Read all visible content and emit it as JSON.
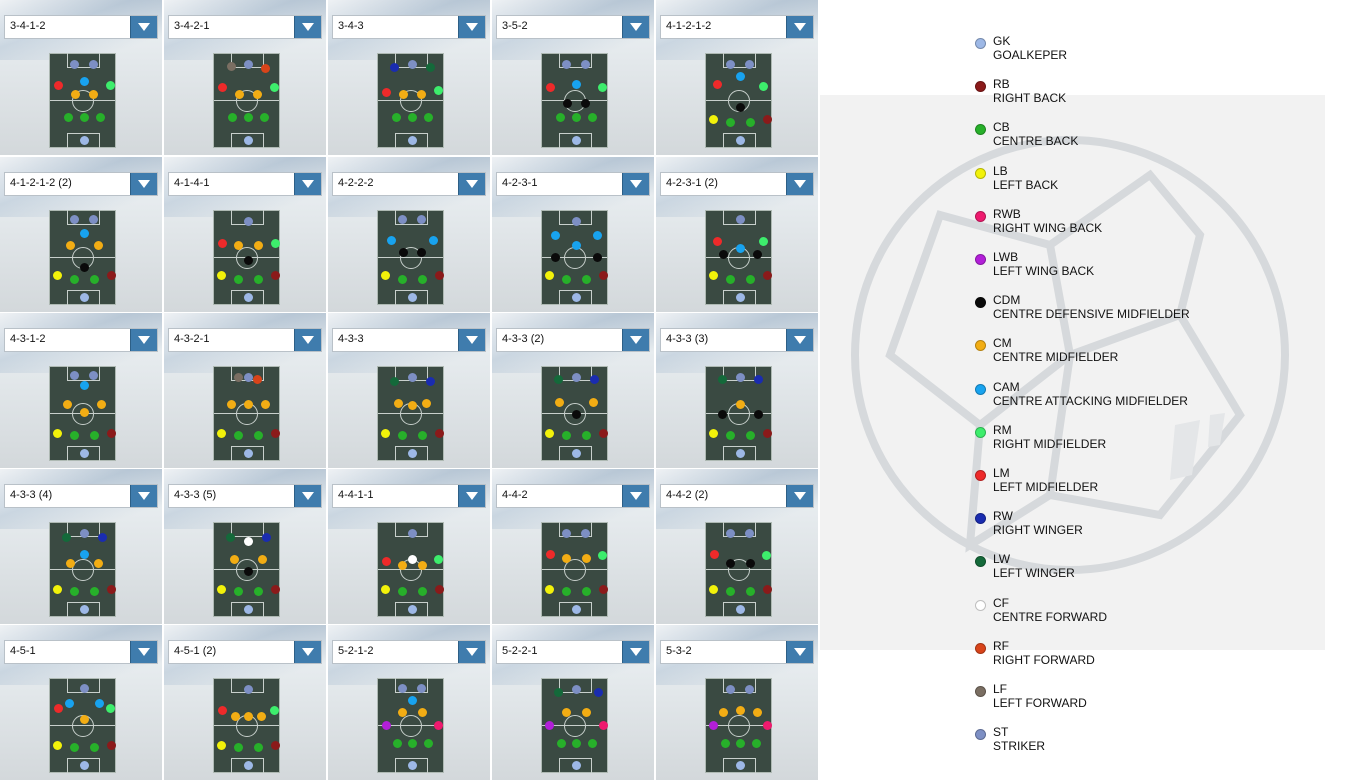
{
  "colors": {
    "GK": "#9db8e6",
    "RB": "#8b1a1a",
    "CB": "#27b02a",
    "LB": "#f2f20a",
    "RWB": "#ee1a6e",
    "LWB": "#b21fd8",
    "CDM": "#0a0a0a",
    "CM": "#f2ad14",
    "CAM": "#18a3ef",
    "RM": "#3ded6c",
    "LM": "#ee2a2a",
    "RW": "#1a2cb0",
    "LW": "#14693a",
    "CF": "#ffffff",
    "RF": "#d8441a",
    "LF": "#7a6e62",
    "ST": "#7d8fc4"
  },
  "formations": [
    {
      "name": "3-4-1-2",
      "players": [
        "ST",
        "ST",
        "CAM",
        "LM",
        "CM",
        "CM",
        "RM",
        "CB",
        "CB",
        "CB",
        "GK"
      ]
    },
    {
      "name": "3-4-2-1",
      "players": [
        "LF",
        "ST",
        "RF",
        "LM",
        "CM",
        "CM",
        "RM",
        "CB",
        "CB",
        "CB",
        "GK"
      ]
    },
    {
      "name": "3-4-3",
      "players": [
        "RW",
        "ST",
        "LW",
        "LM",
        "CM",
        "CM",
        "RM",
        "CB",
        "CB",
        "CB",
        "GK"
      ]
    },
    {
      "name": "3-5-2",
      "players": [
        "ST",
        "ST",
        "CAM",
        "LM",
        "CDM",
        "CDM",
        "RM",
        "CB",
        "CB",
        "CB",
        "GK"
      ]
    },
    {
      "name": "4-1-2-1-2",
      "players": [
        "ST",
        "ST",
        "CAM",
        "LM",
        "RM",
        "CDM",
        "LB",
        "CB",
        "CB",
        "RB",
        "GK"
      ]
    },
    {
      "name": "4-1-2-1-2 (2)",
      "players": [
        "ST",
        "ST",
        "CAM",
        "CM",
        "CM",
        "CDM",
        "LB",
        "CB",
        "CB",
        "RB",
        "GK"
      ]
    },
    {
      "name": "4-1-4-1",
      "players": [
        "ST",
        "LM",
        "CM",
        "CM",
        "RM",
        "CDM",
        "LB",
        "CB",
        "CB",
        "RB",
        "GK"
      ]
    },
    {
      "name": "4-2-2-2",
      "players": [
        "ST",
        "ST",
        "CAM",
        "CAM",
        "CDM",
        "CDM",
        "LB",
        "CB",
        "CB",
        "RB",
        "GK"
      ]
    },
    {
      "name": "4-2-3-1",
      "players": [
        "ST",
        "CAM",
        "CAM",
        "CAM",
        "CDM",
        "CDM",
        "LB",
        "CB",
        "CB",
        "RB",
        "GK"
      ]
    },
    {
      "name": "4-2-3-1 (2)",
      "players": [
        "ST",
        "LM",
        "CAM",
        "RM",
        "CDM",
        "CDM",
        "LB",
        "CB",
        "CB",
        "RB",
        "GK"
      ]
    },
    {
      "name": "4-3-1-2",
      "players": [
        "ST",
        "ST",
        "CAM",
        "CM",
        "CM",
        "CM",
        "LB",
        "CB",
        "CB",
        "RB",
        "GK"
      ]
    },
    {
      "name": "4-3-2-1",
      "players": [
        "LF",
        "ST",
        "RF",
        "CM",
        "CM",
        "CM",
        "LB",
        "CB",
        "CB",
        "RB",
        "GK"
      ]
    },
    {
      "name": "4-3-3",
      "players": [
        "LW",
        "ST",
        "RW",
        "CM",
        "CM",
        "CM",
        "LB",
        "CB",
        "CB",
        "RB",
        "GK"
      ]
    },
    {
      "name": "4-3-3 (2)",
      "players": [
        "LW",
        "ST",
        "RW",
        "CM",
        "CM",
        "CDM",
        "LB",
        "CB",
        "CB",
        "RB",
        "GK"
      ]
    },
    {
      "name": "4-3-3 (3)",
      "players": [
        "LW",
        "ST",
        "RW",
        "CM",
        "CDM",
        "CDM",
        "LB",
        "CB",
        "CB",
        "RB",
        "GK"
      ]
    },
    {
      "name": "4-3-3 (4)",
      "players": [
        "LW",
        "ST",
        "RW",
        "CAM",
        "CM",
        "CM",
        "LB",
        "CB",
        "CB",
        "RB",
        "GK"
      ]
    },
    {
      "name": "4-3-3 (5)",
      "players": [
        "LW",
        "CF",
        "RW",
        "CM",
        "CM",
        "CDM",
        "LB",
        "CB",
        "CB",
        "RB",
        "GK"
      ]
    },
    {
      "name": "4-4-1-1",
      "players": [
        "ST",
        "CF",
        "LM",
        "CM",
        "CM",
        "RM",
        "LB",
        "CB",
        "CB",
        "RB",
        "GK"
      ]
    },
    {
      "name": "4-4-2",
      "players": [
        "ST",
        "ST",
        "LM",
        "CM",
        "CM",
        "RM",
        "LB",
        "CB",
        "CB",
        "RB",
        "GK"
      ]
    },
    {
      "name": "4-4-2 (2)",
      "players": [
        "ST",
        "ST",
        "LM",
        "CDM",
        "CDM",
        "RM",
        "LB",
        "CB",
        "CB",
        "RB",
        "GK"
      ]
    },
    {
      "name": "4-5-1",
      "players": [
        "ST",
        "CAM",
        "CAM",
        "LM",
        "CM",
        "RM",
        "LB",
        "CB",
        "CB",
        "RB",
        "GK"
      ]
    },
    {
      "name": "4-5-1 (2)",
      "players": [
        "ST",
        "LM",
        "CM",
        "CM",
        "CM",
        "RM",
        "LB",
        "CB",
        "CB",
        "RB",
        "GK"
      ]
    },
    {
      "name": "5-2-1-2",
      "players": [
        "ST",
        "ST",
        "CAM",
        "CM",
        "CM",
        "LWB",
        "CB",
        "CB",
        "CB",
        "RWB",
        "GK"
      ]
    },
    {
      "name": "5-2-2-1",
      "players": [
        "LW",
        "ST",
        "RW",
        "CM",
        "CM",
        "LWB",
        "CB",
        "CB",
        "CB",
        "RWB",
        "GK"
      ]
    },
    {
      "name": "5-3-2",
      "players": [
        "ST",
        "ST",
        "CM",
        "CM",
        "CM",
        "LWB",
        "CB",
        "CB",
        "CB",
        "RWB",
        "GK"
      ]
    }
  ],
  "legend": [
    {
      "code": "GK",
      "full": "GOALKEPER"
    },
    {
      "code": "RB",
      "full": "RIGHT BACK"
    },
    {
      "code": "CB",
      "full": "CENTRE BACK"
    },
    {
      "code": "LB",
      "full": "LEFT BACK"
    },
    {
      "code": "RWB",
      "full": "RIGHT WING BACK"
    },
    {
      "code": "LWB",
      "full": "LEFT WING BACK"
    },
    {
      "code": "CDM",
      "full": "CENTRE DEFENSIVE MIDFIELDER"
    },
    {
      "code": "CM",
      "full": "CENTRE MIDFIELDER"
    },
    {
      "code": "CAM",
      "full": "CENTRE ATTACKING MIDFIELDER"
    },
    {
      "code": "RM",
      "full": "RIGHT MIDFIELDER"
    },
    {
      "code": "LM",
      "full": "LEFT MIDFIELDER"
    },
    {
      "code": "RW",
      "full": "RIGHT WINGER"
    },
    {
      "code": "LW",
      "full": "LEFT WINGER"
    },
    {
      "code": "CF",
      "full": "CENTRE FORWARD"
    },
    {
      "code": "RF",
      "full": "RIGHT FORWARD"
    },
    {
      "code": "LF",
      "full": "LEFT FORWARD"
    },
    {
      "code": "ST",
      "full": "STRIKER"
    }
  ]
}
